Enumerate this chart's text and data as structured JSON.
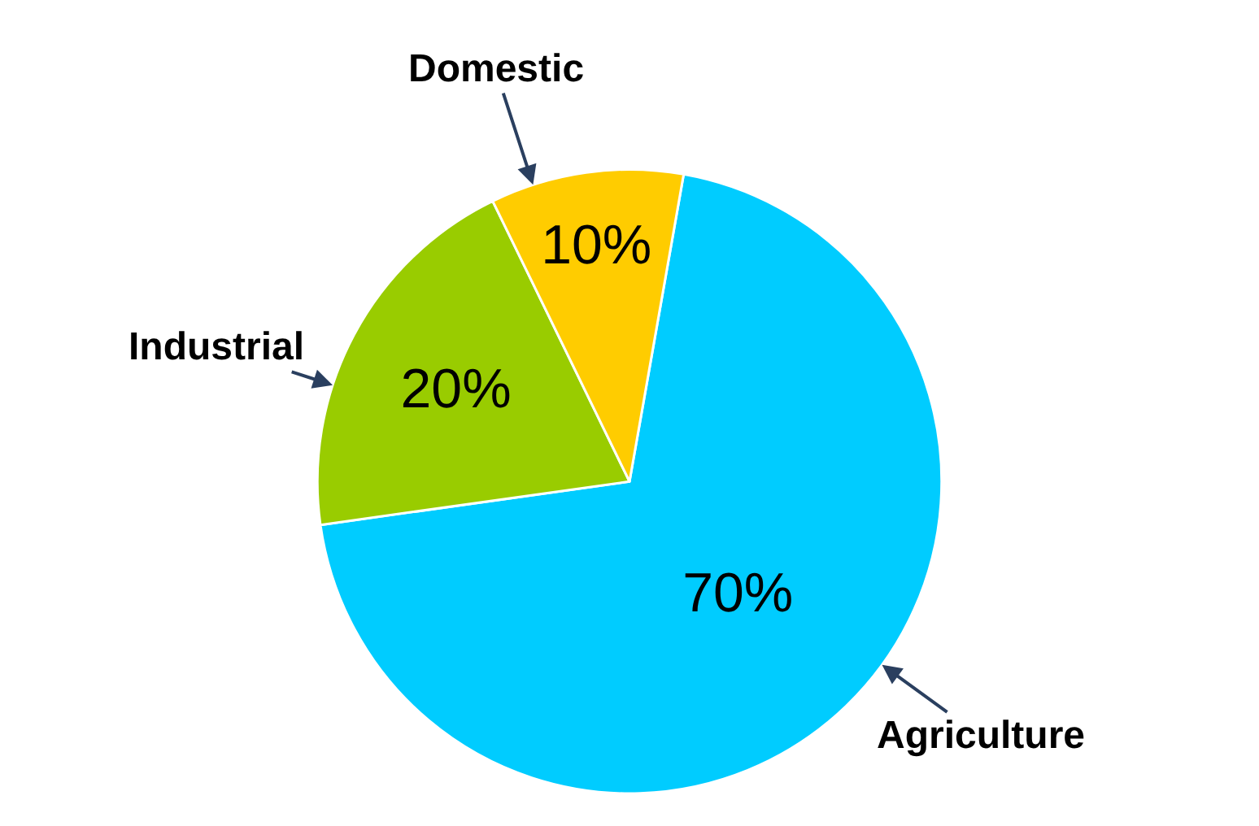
{
  "chart_data": {
    "type": "pie",
    "categories": [
      "Agriculture",
      "Industrial",
      "Domestic"
    ],
    "values": [
      70,
      20,
      10
    ],
    "colors": [
      "#00ccff",
      "#99cc00",
      "#ffcc00"
    ],
    "value_labels": [
      "70%",
      "20%",
      "10%"
    ],
    "legend": false
  }
}
